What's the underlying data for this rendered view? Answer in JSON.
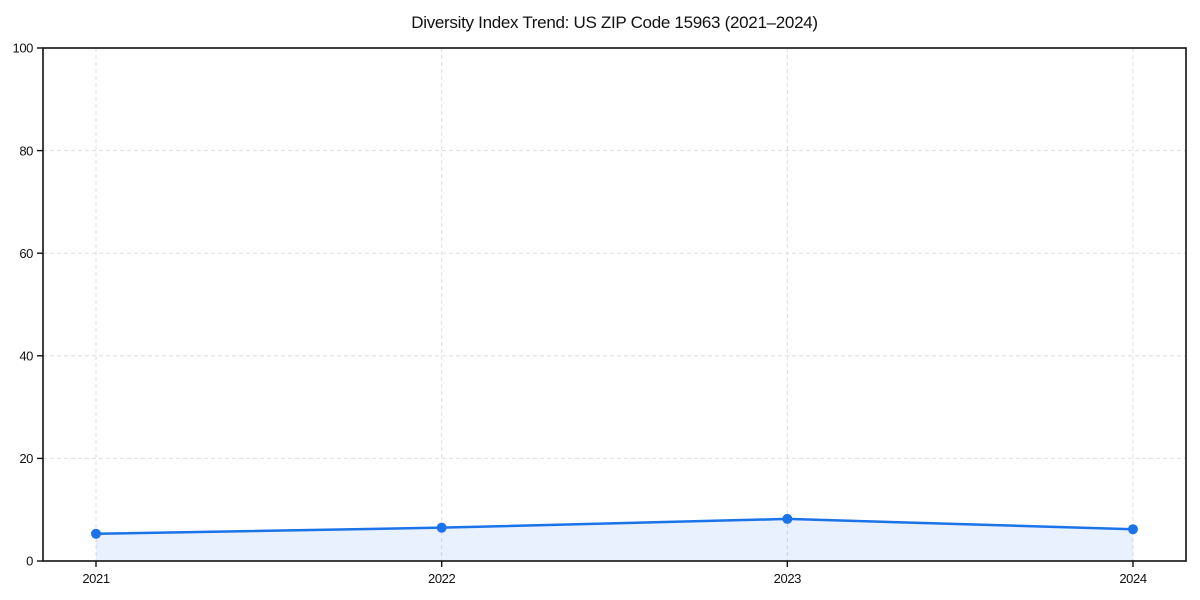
{
  "chart_data": {
    "type": "line",
    "title": "Diversity Index Trend: US ZIP Code 15963 (2021–2024)",
    "categories": [
      "2021",
      "2022",
      "2023",
      "2024"
    ],
    "series": [
      {
        "name": "Diversity Index",
        "values": [
          5.3,
          6.5,
          8.2,
          6.2
        ]
      }
    ],
    "xlabel": "",
    "ylabel": "",
    "ylim": [
      0,
      100
    ],
    "yticks": [
      0,
      20,
      40,
      60,
      80,
      100
    ],
    "grid": true,
    "grid_style": "dashed",
    "legend_position": "none",
    "marker": "circle",
    "area_fill_to_zero": true,
    "colors": {
      "line": "#1a73e8",
      "marker": "#1a73e8",
      "area_fill": "rgba(26,115,232,0.10)",
      "grid": "#dedede",
      "spine": "#111111",
      "text": "#111111"
    }
  }
}
